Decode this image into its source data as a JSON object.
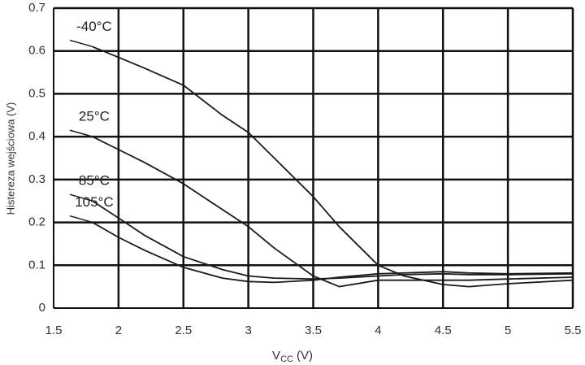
{
  "chart_data": {
    "type": "line",
    "y_label": "Histereza wejściowa (V)",
    "x_label_symbol": "V",
    "x_label_subscript": "CC",
    "x_label_suffix": "(V)",
    "x": [
      1.8,
      2.0,
      2.2,
      2.5,
      2.8,
      3.0,
      3.2,
      3.5,
      3.7,
      4.0,
      4.2,
      4.5,
      4.7,
      5.0,
      5.5
    ],
    "series": [
      {
        "name": "-40°C",
        "color": "#1a1a1a",
        "values": [
          0.61,
          0.585,
          0.56,
          0.52,
          0.45,
          0.41,
          0.35,
          0.26,
          0.19,
          0.1,
          0.075,
          0.055,
          0.05,
          0.057,
          0.065
        ]
      },
      {
        "name": "25°C",
        "color": "#1a1a1a",
        "values": [
          0.4,
          0.37,
          0.34,
          0.29,
          0.23,
          0.19,
          0.14,
          0.075,
          0.05,
          0.065,
          0.065,
          0.065,
          0.065,
          0.068,
          0.072
        ]
      },
      {
        "name": "85°C",
        "color": "#1a1a1a",
        "values": [
          0.25,
          0.21,
          0.17,
          0.12,
          0.09,
          0.075,
          0.07,
          0.068,
          0.07,
          0.075,
          0.078,
          0.08,
          0.078,
          0.078,
          0.08
        ]
      },
      {
        "name": "105°C",
        "color": "#1a1a1a",
        "values": [
          0.2,
          0.165,
          0.135,
          0.095,
          0.07,
          0.062,
          0.06,
          0.065,
          0.072,
          0.08,
          0.082,
          0.085,
          0.082,
          0.08,
          0.082
        ]
      }
    ],
    "xlim": [
      1.5,
      5.5
    ],
    "xticks": [
      1.5,
      2,
      2.5,
      3,
      3.5,
      4,
      4.5,
      5,
      5.5
    ],
    "ylim": [
      0,
      0.7
    ],
    "yticks": [
      0,
      0.1,
      0.2,
      0.3,
      0.4,
      0.5,
      0.6,
      0.7
    ],
    "grid": true
  }
}
